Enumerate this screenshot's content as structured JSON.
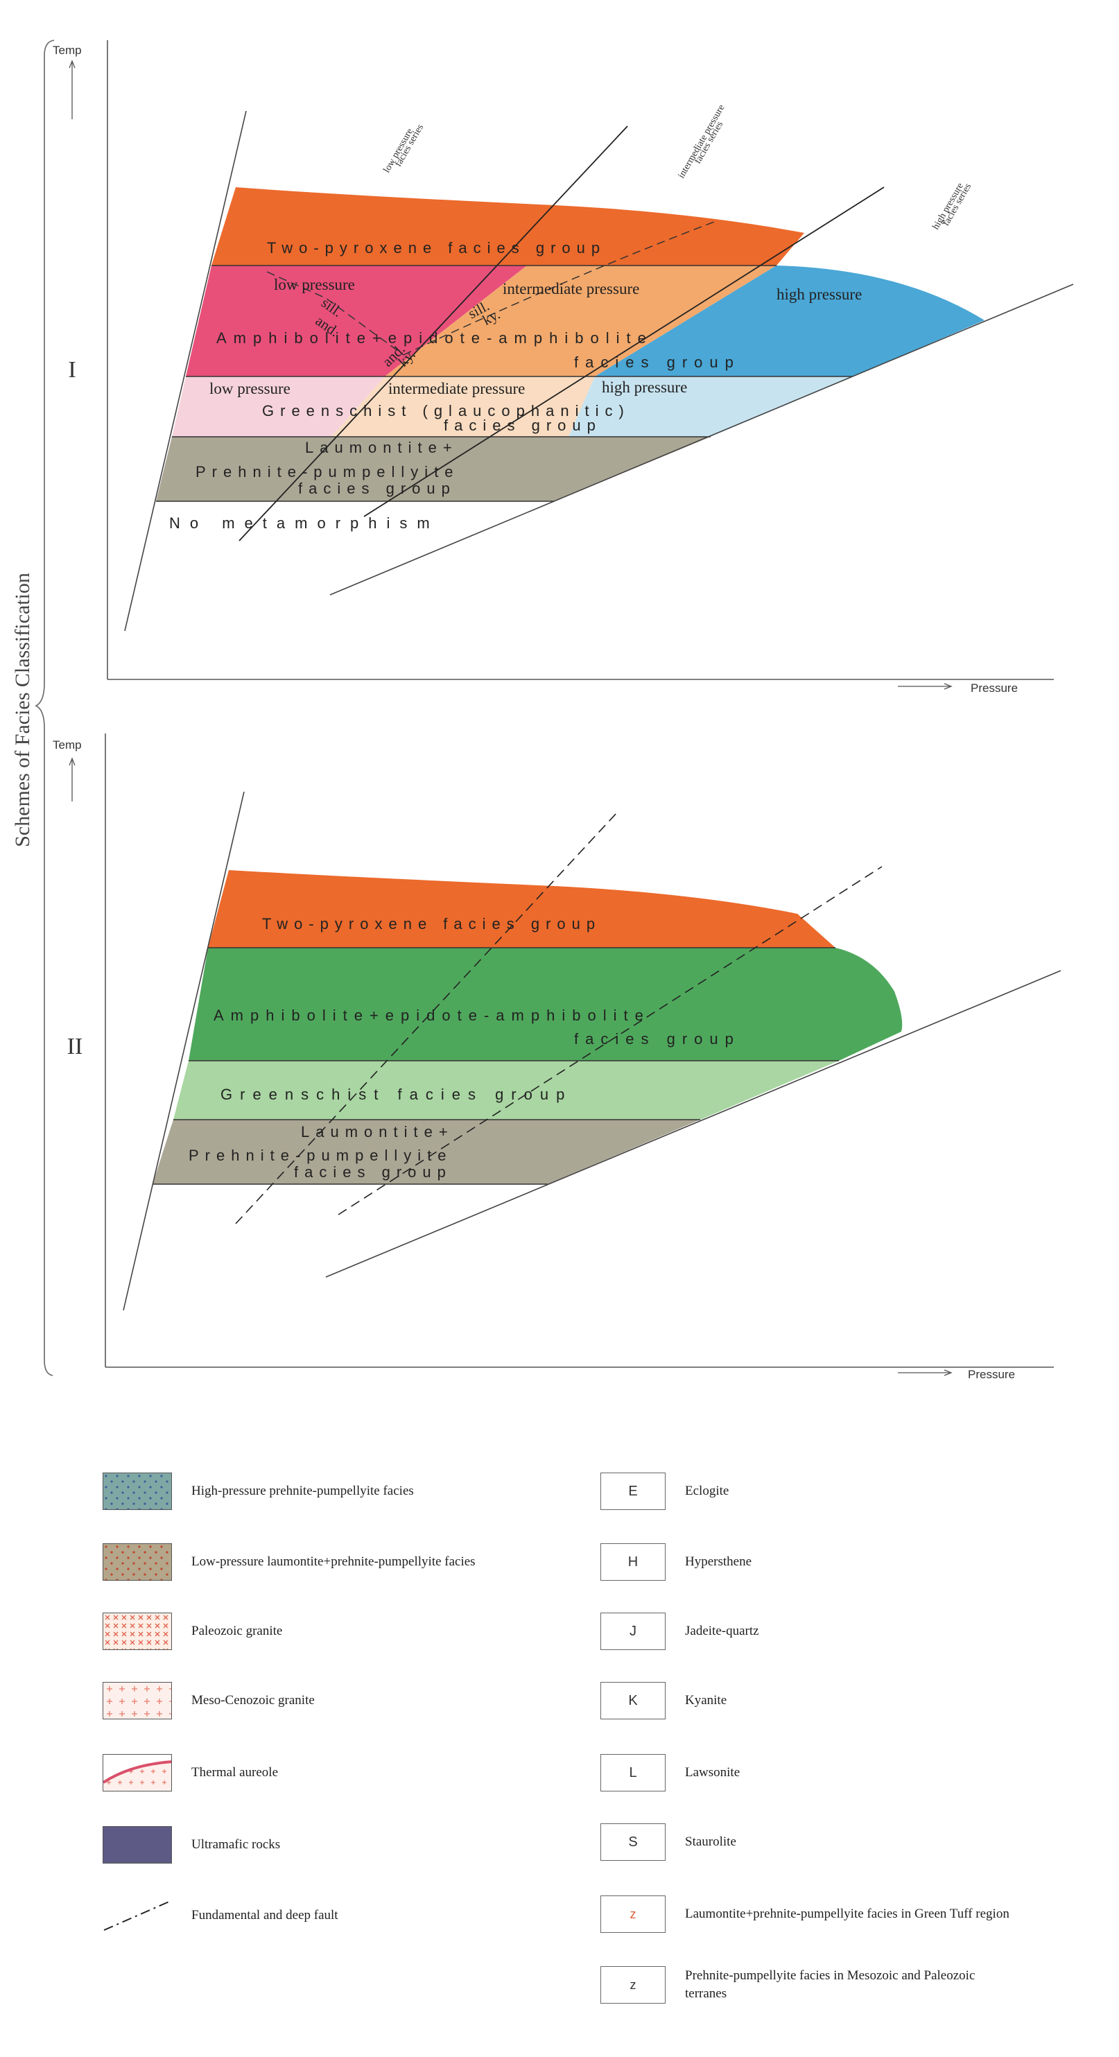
{
  "side_title": "Schemes of Facies Classification",
  "axes": {
    "temp": "Temp",
    "pressure": "Pressure"
  },
  "scheme_I": {
    "numeral": "I",
    "series_labels": {
      "low": [
        "low pressure",
        "facies series"
      ],
      "intermediate": [
        "intermediate pressure",
        "facies series"
      ],
      "high": [
        "high pressure",
        "facies series"
      ]
    },
    "two_pyroxene": "Two-pyroxene facies group",
    "amph_low": "low pressure",
    "amph_int": "intermediate pressure",
    "amph_high": "high pressure",
    "amph_line1": "Amphibolite+epidote-amphibolite",
    "amph_line2": "facies group",
    "sill_and_1": "sill.",
    "sill_and_2": "and.",
    "and_ky_1": "and.",
    "and_ky_2": "ky.",
    "sill_ky_1": "sill.",
    "sill_ky_2": "ky.",
    "gs_low": "low pressure",
    "gs_int": "intermediate pressure",
    "gs_high": "high pressure",
    "gs_line1": "Greenschist (glaucophanitic)",
    "gs_line2": "facies group",
    "pp_line1": "Laumontite+",
    "pp_line2": "Prehnite-pumpellyite",
    "pp_line3": "facies group",
    "no_meta": "No metamorphism"
  },
  "scheme_II": {
    "numeral": "II",
    "two_pyroxene": "Two-pyroxene facies group",
    "amph_line1": "Amphibolite+epidote-amphibolite",
    "amph_line2": "facies group",
    "gs_line": "Greenschist facies group",
    "pp_line1": "Laumontite+",
    "pp_line2": "Prehnite-pumpellyite",
    "pp_line3": "facies group"
  },
  "legend_left": [
    {
      "icon": "high-pressure-prehnite-pumpellyite-swatch",
      "label": "High-pressure prehnite-pumpellyite facies"
    },
    {
      "icon": "low-pressure-laumontite-swatch",
      "label": "Low-pressure laumontite+prehnite-pumpellyite facies"
    },
    {
      "icon": "paleozoic-granite-swatch",
      "label": "Paleozoic granite"
    },
    {
      "icon": "meso-cenozoic-granite-swatch",
      "label": "Meso-Cenozoic granite"
    },
    {
      "icon": "thermal-aureole-swatch",
      "label": "Thermal aureole"
    },
    {
      "icon": "ultramafic-rocks-swatch",
      "label": "Ultramafic rocks"
    },
    {
      "icon": "fault-line-icon",
      "label": "Fundamental and deep fault"
    }
  ],
  "legend_right": [
    {
      "letter": "E",
      "label": "Eclogite"
    },
    {
      "letter": "H",
      "label": "Hypersthene"
    },
    {
      "letter": "J",
      "label": "Jadeite-quartz"
    },
    {
      "letter": "K",
      "label": "Kyanite"
    },
    {
      "letter": "L",
      "label": "Lawsonite"
    },
    {
      "letter": "S",
      "label": "Staurolite"
    },
    {
      "letter": "Z",
      "label": "Laumontite+prehnite-pumpellyite facies in Green Tuff region"
    },
    {
      "letter": "Z",
      "label": "Prehnite-pumpellyite facies in Mesozoic and Paleozoic terranes"
    }
  ],
  "colors": {
    "orange": "#ec6a2c",
    "pink": "#e8507a",
    "peach": "#f3a96c",
    "blue": "#4aa7d6",
    "light_pink": "#f6d3dc",
    "light_peach": "#f9dcc1",
    "light_blue": "#c7e3ef",
    "grey_green": "#aba795",
    "green": "#4ea85c",
    "light_green": "#a9d6a2",
    "ultramafic": "#5d5a85",
    "red_letter": "#e0603a"
  }
}
